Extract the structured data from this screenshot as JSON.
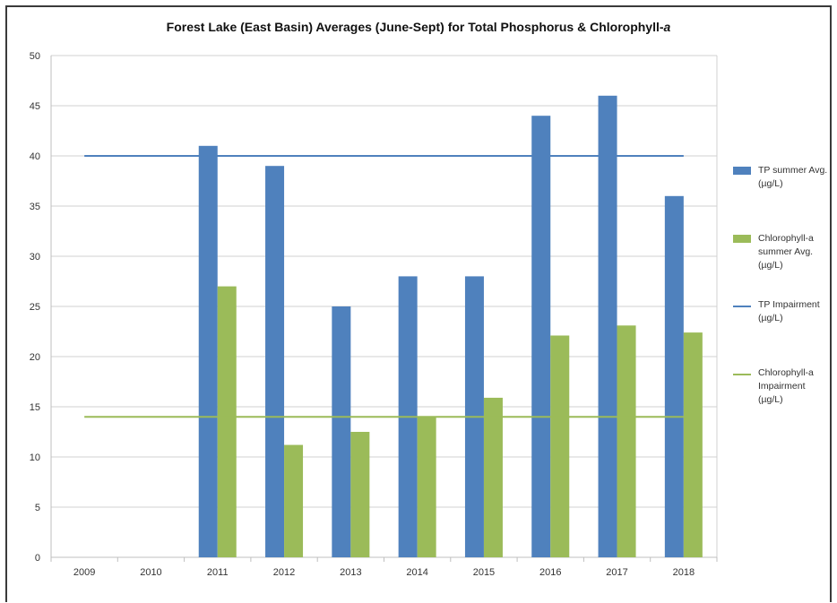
{
  "chart_data": {
    "type": "bar",
    "title": "Forest Lake (East Basin) Averages (June-Sept) for Total Phosphorus & Chlorophyll-a",
    "title_plain": "Forest Lake (East Basin) Averages (June-Sept) for Total Phosphorus & Chlorophyll-",
    "title_italic": "a",
    "categories": [
      "2009",
      "2010",
      "2011",
      "2012",
      "2013",
      "2014",
      "2015",
      "2016",
      "2017",
      "2018"
    ],
    "series": [
      {
        "name": "TP summer Avg. (µg/L)",
        "kind": "bar",
        "color": "#4f81bd",
        "values": [
          null,
          null,
          41,
          39,
          25,
          28,
          28,
          44,
          46,
          36
        ]
      },
      {
        "name": "Chlorophyll-a summer Avg. (µg/L)",
        "kind": "bar",
        "color": "#9bbb59",
        "values": [
          null,
          null,
          27,
          11.2,
          12.5,
          14,
          15.9,
          22.1,
          23.1,
          22.4
        ]
      },
      {
        "name": "TP Impairment (µg/L)",
        "kind": "line",
        "color": "#4f81bd",
        "value": 40
      },
      {
        "name": "Chlorophyll-a Impairment (µg/L)",
        "kind": "line",
        "color": "#9bbb59",
        "value": 14
      }
    ],
    "ylim": [
      0,
      50
    ],
    "yticks": [
      0,
      5,
      10,
      15,
      20,
      25,
      30,
      35,
      40,
      45,
      50
    ],
    "grid": true,
    "legend_position": "right"
  },
  "legend": [
    {
      "lines": [
        "TP summer Avg.",
        "(µg/L)"
      ],
      "color": "#4f81bd",
      "kind": "bar"
    },
    {
      "lines": [
        "Chlorophyll-a",
        "summer Avg.",
        "(µg/L)"
      ],
      "color": "#9bbb59",
      "kind": "bar"
    },
    {
      "lines": [
        "TP Impairment",
        "(µg/L)"
      ],
      "color": "#4f81bd",
      "kind": "line"
    },
    {
      "lines": [
        "Chlorophyll-a",
        "Impairment",
        "(µg/L)"
      ],
      "color": "#9bbb59",
      "kind": "line"
    }
  ]
}
